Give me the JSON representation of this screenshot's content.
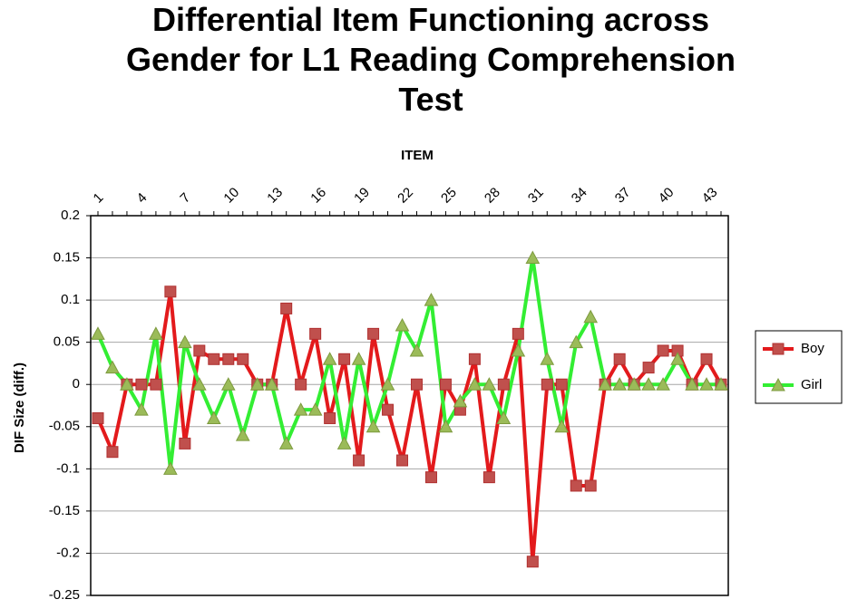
{
  "chart_data": {
    "type": "line",
    "title": "Differential Item Functioning across Gender for L1 Reading Comprehension Test",
    "x_label": "ITEM",
    "y_label": "DIF Size (diff.)",
    "categories": [
      "1",
      null,
      null,
      "4",
      null,
      null,
      "7",
      null,
      null,
      "10",
      null,
      null,
      "13",
      null,
      null,
      "16",
      null,
      null,
      "19",
      null,
      null,
      "22",
      null,
      null,
      "25",
      null,
      null,
      "28",
      null,
      null,
      "31",
      null,
      null,
      "34",
      null,
      null,
      "37",
      null,
      null,
      "40",
      null,
      null,
      "43",
      null
    ],
    "series": [
      {
        "name": "Boy",
        "color": "#e31a1c",
        "marker_color": "#c0504d",
        "marker": "square",
        "values": [
          -0.04,
          -0.08,
          0,
          0,
          0,
          0.11,
          -0.07,
          0.04,
          0.03,
          0.03,
          0.03,
          0,
          0,
          0.09,
          0,
          0.06,
          -0.04,
          0.03,
          -0.09,
          0.06,
          -0.03,
          -0.09,
          0,
          -0.11,
          0,
          -0.03,
          0.03,
          -0.11,
          0,
          0.06,
          -0.21,
          0,
          0,
          -0.12,
          -0.12,
          0,
          0.03,
          0,
          0.02,
          0.04,
          0.04,
          0,
          0.03,
          0
        ]
      },
      {
        "name": "Girl",
        "color": "#33ee33",
        "marker_color": "#9bbb59",
        "marker": "triangle",
        "values": [
          0.06,
          0.02,
          0,
          -0.03,
          0.06,
          -0.1,
          0.05,
          0,
          -0.04,
          0,
          -0.06,
          0,
          0,
          -0.07,
          -0.03,
          -0.03,
          0.03,
          -0.07,
          0.03,
          -0.05,
          0,
          0.07,
          0.04,
          0.1,
          -0.05,
          -0.02,
          0,
          0,
          -0.04,
          0.04,
          0.15,
          0.03,
          -0.05,
          0.05,
          0.08,
          0,
          0,
          0,
          0,
          0,
          0.03,
          0,
          0,
          0
        ]
      }
    ],
    "ylim": [
      -0.25,
      0.2
    ],
    "yticks": [
      0.2,
      0.15,
      0.1,
      0.05,
      0,
      -0.05,
      -0.1,
      -0.15,
      -0.2,
      -0.25
    ],
    "grid": true,
    "legend": "right"
  }
}
